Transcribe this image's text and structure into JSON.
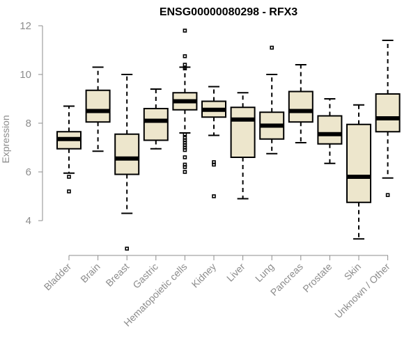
{
  "chart_data": {
    "type": "box",
    "title": "ENSG00000080298 - RFX3",
    "ylabel": "Expression",
    "xlabel": "",
    "ylim": [
      3,
      12.2
    ],
    "yticks": [
      4,
      6,
      8,
      10,
      12
    ],
    "box_fill": "#ede6cc",
    "categories": [
      "Bladder",
      "Brain",
      "Breast",
      "Gastric",
      "Hematopoietic cells",
      "Kidney",
      "Liver",
      "Lung",
      "Pancreas",
      "Prostate",
      "Skin",
      "Unknown / Other"
    ],
    "boxes": [
      {
        "category": "Bladder",
        "whislo": 5.95,
        "q1": 6.95,
        "med": 7.35,
        "q3": 7.65,
        "whishi": 8.7,
        "fliers": [
          5.8,
          5.2
        ]
      },
      {
        "category": "Brain",
        "whislo": 6.85,
        "q1": 8.05,
        "med": 8.5,
        "q3": 9.35,
        "whishi": 10.3,
        "fliers": []
      },
      {
        "category": "Breast",
        "whislo": 4.3,
        "q1": 5.9,
        "med": 6.55,
        "q3": 7.55,
        "whishi": 10.0,
        "fliers": [
          2.85
        ]
      },
      {
        "category": "Gastric",
        "whislo": 6.95,
        "q1": 7.3,
        "med": 8.1,
        "q3": 8.6,
        "whishi": 9.4,
        "fliers": []
      },
      {
        "category": "Hematopoietic cells",
        "whislo": 7.6,
        "q1": 8.55,
        "med": 8.9,
        "q3": 9.25,
        "whishi": 10.3,
        "fliers": [
          11.8,
          10.75,
          10.4,
          10.25,
          7.55,
          7.4,
          7.3,
          7.2,
          7.1,
          7.0,
          6.9,
          6.6,
          6.3,
          6.2,
          6.0
        ]
      },
      {
        "category": "Kidney",
        "whislo": 7.5,
        "q1": 8.25,
        "med": 8.55,
        "q3": 8.9,
        "whishi": 9.5,
        "fliers": [
          6.4,
          6.3,
          5.0
        ]
      },
      {
        "category": "Liver",
        "whislo": 4.9,
        "q1": 6.6,
        "med": 8.15,
        "q3": 8.65,
        "whishi": 9.25,
        "fliers": []
      },
      {
        "category": "Lung",
        "whislo": 6.75,
        "q1": 7.35,
        "med": 7.9,
        "q3": 8.45,
        "whishi": 10.0,
        "fliers": [
          11.1
        ]
      },
      {
        "category": "Pancreas",
        "whislo": 7.2,
        "q1": 8.05,
        "med": 8.5,
        "q3": 9.3,
        "whishi": 10.4,
        "fliers": []
      },
      {
        "category": "Prostate",
        "whislo": 6.35,
        "q1": 7.15,
        "med": 7.55,
        "q3": 8.3,
        "whishi": 9.0,
        "fliers": []
      },
      {
        "category": "Skin",
        "whislo": 3.25,
        "q1": 4.75,
        "med": 5.8,
        "q3": 7.95,
        "whishi": 8.75,
        "fliers": []
      },
      {
        "category": "Unknown / Other",
        "whislo": 5.75,
        "q1": 7.65,
        "med": 8.2,
        "q3": 9.2,
        "whishi": 11.4,
        "fliers": [
          5.05
        ]
      }
    ]
  }
}
